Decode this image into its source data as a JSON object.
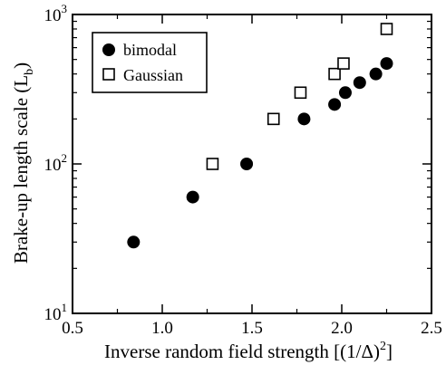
{
  "chart_data": {
    "type": "scatter",
    "xlabel": "Inverse random field strength [(1/Δ)",
    "xlabel_sup": "2",
    "xlabel_end": "]",
    "ylabel": "Brake-up length scale (L",
    "ylabel_sub": "b",
    "ylabel_end": ")",
    "xlim": [
      0.5,
      2.5
    ],
    "ylim": [
      10,
      1000
    ],
    "yscale": "log",
    "grid": false,
    "legend_position": "top-left",
    "x_ticks": [
      {
        "value": 0.5,
        "label": "0.5"
      },
      {
        "value": 1.0,
        "label": "1.0"
      },
      {
        "value": 1.5,
        "label": "1.5"
      },
      {
        "value": 2.0,
        "label": "2.0"
      },
      {
        "value": 2.5,
        "label": "2.5"
      }
    ],
    "y_ticks": [
      {
        "value": 10,
        "base": "10",
        "exp": "1"
      },
      {
        "value": 100,
        "base": "10",
        "exp": "2"
      },
      {
        "value": 1000,
        "base": "10",
        "exp": "3"
      }
    ],
    "series": [
      {
        "name": "bimodal",
        "marker": "filled-circle",
        "color": "#000000",
        "points": [
          {
            "x": 0.84,
            "y": 30
          },
          {
            "x": 1.17,
            "y": 60
          },
          {
            "x": 1.47,
            "y": 100
          },
          {
            "x": 1.79,
            "y": 200
          },
          {
            "x": 1.96,
            "y": 250
          },
          {
            "x": 2.02,
            "y": 300
          },
          {
            "x": 2.1,
            "y": 350
          },
          {
            "x": 2.19,
            "y": 400
          },
          {
            "x": 2.25,
            "y": 470
          }
        ]
      },
      {
        "name": "Gaussian",
        "marker": "open-square",
        "color": "#000000",
        "points": [
          {
            "x": 1.28,
            "y": 100
          },
          {
            "x": 1.62,
            "y": 200
          },
          {
            "x": 1.77,
            "y": 300
          },
          {
            "x": 1.96,
            "y": 400
          },
          {
            "x": 2.01,
            "y": 470
          },
          {
            "x": 2.25,
            "y": 800
          }
        ]
      }
    ]
  }
}
